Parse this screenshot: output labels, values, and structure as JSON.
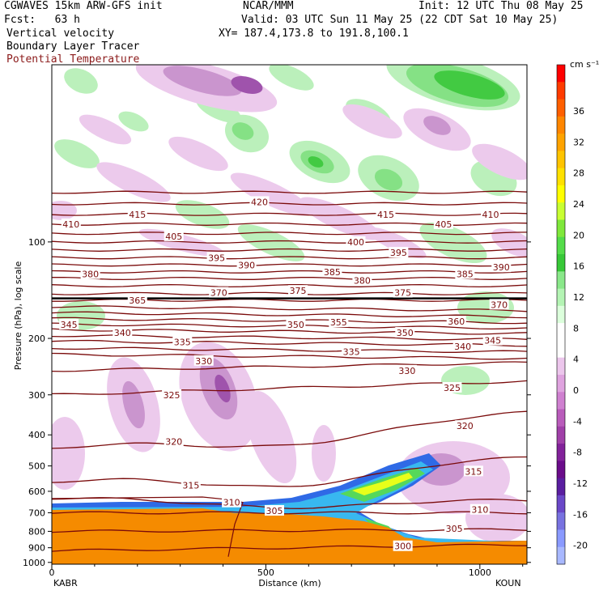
{
  "header": {
    "model": "CGWAVES 15km ARW-GFS init",
    "org": "NCAR/MMM",
    "init": "Init: 12 UTC Thu 08 May 25",
    "fcst": "Fcst:   63 h",
    "valid": "Valid: 03 UTC Sun 11 May 25 (22 CDT Sat 10 May 25)",
    "field1": "Vertical velocity",
    "field2": "Boundary Layer Tracer",
    "field3": "Potential Temperature",
    "xy": "XY= 187.4,173.8 to 191.8,100.1"
  },
  "colors": {
    "theta": "#7a0a0a",
    "tracer": "#f58b00",
    "axes": "#000000"
  },
  "chart_data": {
    "type": "heatmap",
    "xlabel": "Distance (km)",
    "ylabel": "Pressure (hPa), log scale",
    "xlim": [
      0,
      1110
    ],
    "ylim": [
      1013,
      28
    ],
    "x_ticks": [
      "0",
      "500",
      "1000"
    ],
    "y_ticks": [
      100,
      200,
      300,
      400,
      500,
      600,
      700,
      800,
      900,
      1000
    ],
    "endpoints": {
      "left": "KABR",
      "right": "KOUN"
    },
    "colorbar": {
      "unit": "cm s⁻¹",
      "labels": [
        36,
        32,
        28,
        24,
        20,
        16,
        12,
        8,
        4,
        0,
        -4,
        -8,
        -12,
        -16,
        -20
      ],
      "colors": [
        "#ff0000",
        "#ff3b00",
        "#ff5f00",
        "#ff8600",
        "#ffa300",
        "#ffc400",
        "#ffe100",
        "#ffff00",
        "#c8ff32",
        "#7fe83b",
        "#54dc4a",
        "#38c838",
        "#8ae88a",
        "#b4f4b4",
        "#dcffdc",
        "#ffffff",
        "#ffffff",
        "#ecc6ec",
        "#dfa3df",
        "#cf80d0",
        "#b95cbb",
        "#a040a8",
        "#82229a",
        "#6a0c8a",
        "#5a1ea0",
        "#6a48c8",
        "#7872e0",
        "#8a9aff",
        "#a8b8ff"
      ]
    },
    "theta_labels": [
      {
        "v": 420,
        "x": 485,
        "p": 75
      },
      {
        "v": 415,
        "x": 200,
        "p": 82
      },
      {
        "v": 415,
        "x": 780,
        "p": 82
      },
      {
        "v": 410,
        "x": 45,
        "p": 88
      },
      {
        "v": 410,
        "x": 1025,
        "p": 82
      },
      {
        "v": 405,
        "x": 285,
        "p": 96
      },
      {
        "v": 405,
        "x": 915,
        "p": 88
      },
      {
        "v": 400,
        "x": 710,
        "p": 100
      },
      {
        "v": 395,
        "x": 385,
        "p": 112
      },
      {
        "v": 395,
        "x": 810,
        "p": 108
      },
      {
        "v": 390,
        "x": 455,
        "p": 118
      },
      {
        "v": 390,
        "x": 1050,
        "p": 120
      },
      {
        "v": 385,
        "x": 655,
        "p": 124
      },
      {
        "v": 385,
        "x": 965,
        "p": 126
      },
      {
        "v": 380,
        "x": 90,
        "p": 126
      },
      {
        "v": 380,
        "x": 725,
        "p": 132
      },
      {
        "v": 375,
        "x": 575,
        "p": 142
      },
      {
        "v": 375,
        "x": 820,
        "p": 144
      },
      {
        "v": 370,
        "x": 390,
        "p": 144
      },
      {
        "v": 370,
        "x": 1045,
        "p": 157
      },
      {
        "v": 365,
        "x": 200,
        "p": 152
      },
      {
        "v": 360,
        "x": 945,
        "p": 177
      },
      {
        "v": 355,
        "x": 670,
        "p": 178
      },
      {
        "v": 350,
        "x": 570,
        "p": 181
      },
      {
        "v": 350,
        "x": 825,
        "p": 192
      },
      {
        "v": 345,
        "x": 40,
        "p": 181
      },
      {
        "v": 345,
        "x": 1030,
        "p": 203
      },
      {
        "v": 340,
        "x": 165,
        "p": 192
      },
      {
        "v": 340,
        "x": 960,
        "p": 212
      },
      {
        "v": 335,
        "x": 305,
        "p": 205
      },
      {
        "v": 335,
        "x": 700,
        "p": 220
      },
      {
        "v": 330,
        "x": 355,
        "p": 235
      },
      {
        "v": 330,
        "x": 830,
        "p": 252
      },
      {
        "v": 325,
        "x": 280,
        "p": 300
      },
      {
        "v": 325,
        "x": 935,
        "p": 285
      },
      {
        "v": 320,
        "x": 285,
        "p": 420
      },
      {
        "v": 320,
        "x": 965,
        "p": 375
      },
      {
        "v": 315,
        "x": 325,
        "p": 575
      },
      {
        "v": 315,
        "x": 985,
        "p": 520
      },
      {
        "v": 310,
        "x": 420,
        "p": 650
      },
      {
        "v": 310,
        "x": 1000,
        "p": 685
      },
      {
        "v": 305,
        "x": 520,
        "p": 690
      },
      {
        "v": 305,
        "x": 940,
        "p": 785
      },
      {
        "v": 300,
        "x": 820,
        "p": 890
      }
    ]
  }
}
